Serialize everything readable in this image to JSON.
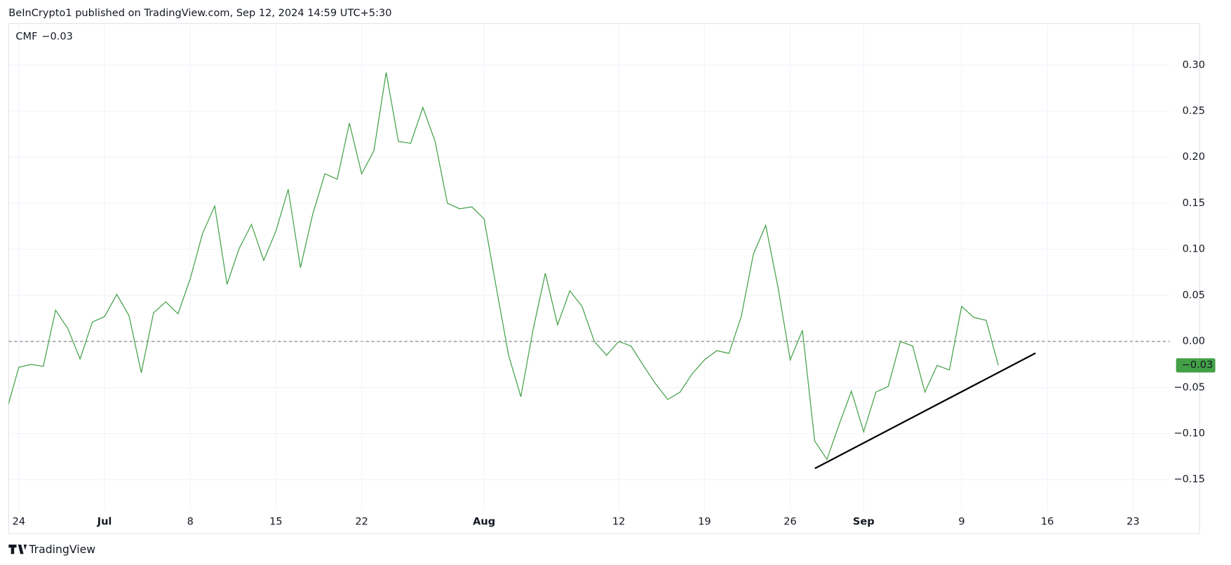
{
  "header": {
    "text": "BeInCrypto1 published on TradingView.com, Sep 12, 2024 14:59 UTC+5:30"
  },
  "footer": {
    "brand": "TradingView"
  },
  "chart_data": {
    "type": "line",
    "x": [
      "2024-06-23",
      "2024-06-24",
      "2024-06-25",
      "2024-06-26",
      "2024-06-27",
      "2024-06-28",
      "2024-06-29",
      "2024-06-30",
      "2024-07-01",
      "2024-07-02",
      "2024-07-03",
      "2024-07-04",
      "2024-07-05",
      "2024-07-06",
      "2024-07-07",
      "2024-07-08",
      "2024-07-09",
      "2024-07-10",
      "2024-07-11",
      "2024-07-12",
      "2024-07-13",
      "2024-07-14",
      "2024-07-15",
      "2024-07-16",
      "2024-07-17",
      "2024-07-18",
      "2024-07-19",
      "2024-07-20",
      "2024-07-21",
      "2024-07-22",
      "2024-07-23",
      "2024-07-24",
      "2024-07-25",
      "2024-07-26",
      "2024-07-27",
      "2024-07-28",
      "2024-07-29",
      "2024-07-30",
      "2024-07-31",
      "2024-08-01",
      "2024-08-02",
      "2024-08-03",
      "2024-08-04",
      "2024-08-05",
      "2024-08-06",
      "2024-08-07",
      "2024-08-08",
      "2024-08-09",
      "2024-08-10",
      "2024-08-11",
      "2024-08-12",
      "2024-08-13",
      "2024-08-14",
      "2024-08-15",
      "2024-08-16",
      "2024-08-17",
      "2024-08-18",
      "2024-08-19",
      "2024-08-20",
      "2024-08-21",
      "2024-08-22",
      "2024-08-23",
      "2024-08-24",
      "2024-08-25",
      "2024-08-26",
      "2024-08-27",
      "2024-08-28",
      "2024-08-29",
      "2024-08-30",
      "2024-08-31",
      "2024-09-01",
      "2024-09-02",
      "2024-09-03",
      "2024-09-04",
      "2024-09-05",
      "2024-09-06",
      "2024-09-07",
      "2024-09-08",
      "2024-09-09",
      "2024-09-10",
      "2024-09-11",
      "2024-09-12"
    ],
    "series": [
      {
        "name": "CMF",
        "color": "#43a047",
        "values": [
          -0.075,
          -0.028,
          -0.025,
          -0.027,
          0.034,
          0.014,
          -0.019,
          0.021,
          0.027,
          0.051,
          0.028,
          -0.034,
          0.031,
          0.043,
          0.03,
          0.068,
          0.117,
          0.147,
          0.062,
          0.101,
          0.127,
          0.088,
          0.12,
          0.165,
          0.08,
          0.138,
          0.182,
          0.176,
          0.237,
          0.182,
          0.207,
          0.292,
          0.217,
          0.215,
          0.254,
          0.217,
          0.15,
          0.144,
          0.146,
          0.133,
          0.058,
          -0.015,
          -0.06,
          0.013,
          0.074,
          0.018,
          0.055,
          0.038,
          0.0,
          -0.015,
          0.0,
          -0.005,
          -0.026,
          -0.046,
          -0.063,
          -0.055,
          -0.035,
          -0.02,
          -0.01,
          -0.013,
          0.027,
          0.095,
          0.126,
          0.059,
          -0.02,
          0.012,
          -0.108,
          -0.128,
          -0.09,
          -0.054,
          -0.098,
          -0.055,
          -0.049,
          0.0,
          -0.005,
          -0.055,
          -0.026,
          -0.031,
          0.038,
          0.026,
          0.023,
          -0.026
        ],
        "value_labels": [
          null,
          null,
          null,
          null,
          null,
          null,
          null,
          null,
          null,
          null,
          null,
          null,
          null,
          null,
          null,
          null,
          null,
          null,
          null,
          null,
          null,
          null,
          null,
          null,
          null,
          null,
          null,
          null,
          null,
          null,
          null,
          null,
          null,
          null,
          null,
          null,
          null,
          null,
          null,
          null,
          null,
          null,
          null,
          null,
          null,
          null,
          null,
          null,
          null,
          null,
          null,
          null,
          null,
          null,
          null,
          null,
          null,
          null,
          null,
          null,
          null,
          null,
          null,
          null,
          null,
          null,
          null,
          null,
          null,
          null,
          null,
          null,
          null,
          null,
          null,
          null,
          null,
          null,
          null,
          null,
          null,
          "−0.03"
        ]
      }
    ],
    "xlim": [
      "2024-06-23",
      "2024-09-26"
    ],
    "xticks": [
      {
        "value": "2024-06-24",
        "label": "24"
      },
      {
        "value": "2024-07-01",
        "label": "Jul"
      },
      {
        "value": "2024-07-08",
        "label": "8"
      },
      {
        "value": "2024-07-15",
        "label": "15"
      },
      {
        "value": "2024-07-22",
        "label": "22"
      },
      {
        "value": "2024-08-01",
        "label": "Aug"
      },
      {
        "value": "2024-08-12",
        "label": "12"
      },
      {
        "value": "2024-08-19",
        "label": "19"
      },
      {
        "value": "2024-08-26",
        "label": "26"
      },
      {
        "value": "2024-09-01",
        "label": "Sep"
      },
      {
        "value": "2024-09-09",
        "label": "9"
      },
      {
        "value": "2024-09-16",
        "label": "16"
      },
      {
        "value": "2024-09-23",
        "label": "23"
      }
    ],
    "ylim": [
      -0.183,
      0.345
    ],
    "yticks": [
      {
        "value": -0.15,
        "label": "−0.15"
      },
      {
        "value": -0.1,
        "label": "−0.10"
      },
      {
        "value": -0.05,
        "label": "−0.05"
      },
      {
        "value": 0,
        "label": "0.00"
      },
      {
        "value": 0.05,
        "label": "0.05"
      },
      {
        "value": 0.1,
        "label": "0.10"
      },
      {
        "value": 0.15,
        "label": "0.15"
      },
      {
        "value": 0.2,
        "label": "0.20"
      },
      {
        "value": 0.25,
        "label": "0.25"
      },
      {
        "value": 0.3,
        "label": "0.30"
      }
    ],
    "grid": true
  }
}
